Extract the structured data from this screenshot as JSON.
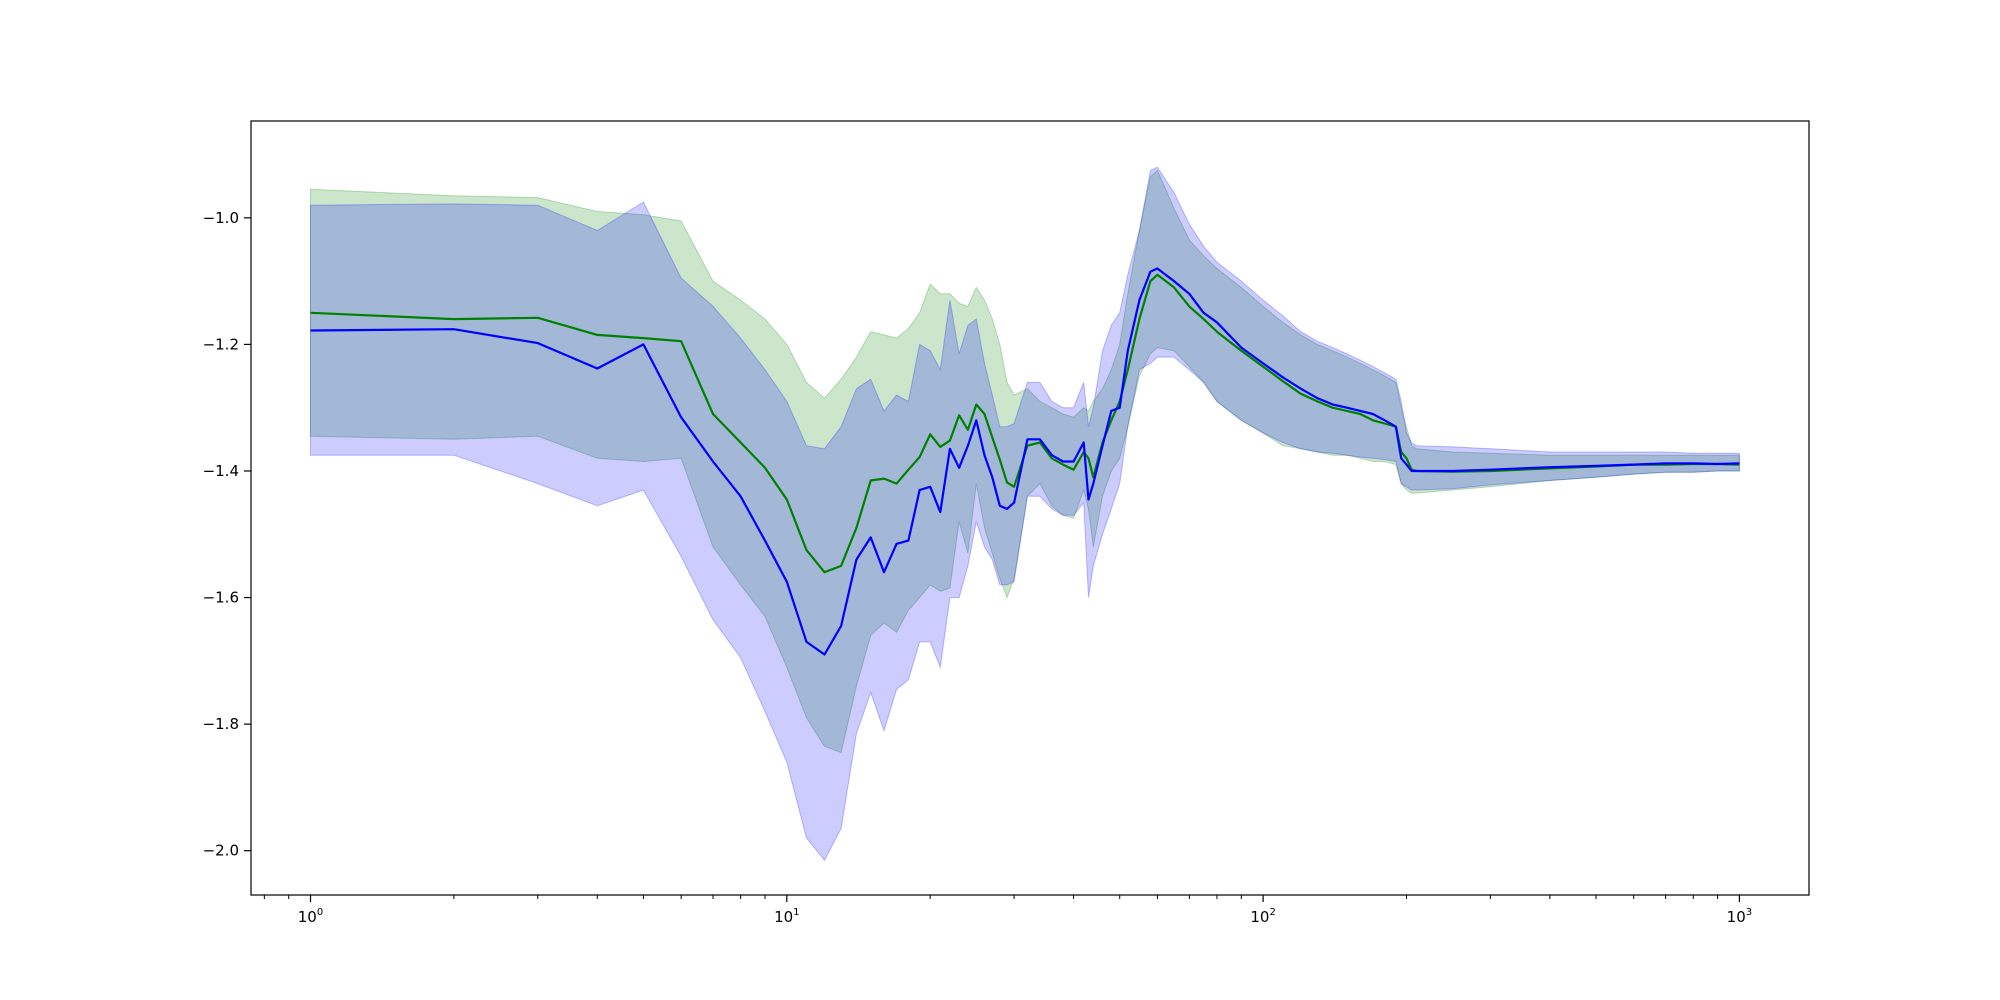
{
  "chart_data": {
    "type": "line",
    "title": "",
    "xlabel": "",
    "ylabel": "",
    "xscale": "log",
    "xlim": [
      0.75,
      1400
    ],
    "ylim": [
      -2.07,
      -0.847
    ],
    "grid": false,
    "legend": "none",
    "x_ticks": [
      {
        "base": "10",
        "exp": "0",
        "value": 1
      },
      {
        "base": "10",
        "exp": "1",
        "value": 10
      },
      {
        "base": "10",
        "exp": "2",
        "value": 100
      },
      {
        "base": "10",
        "exp": "3",
        "value": 1000
      }
    ],
    "y_ticks": [
      {
        "label": "−1.0",
        "value": -1.0
      },
      {
        "label": "−1.2",
        "value": -1.2
      },
      {
        "label": "−1.4",
        "value": -1.4
      },
      {
        "label": "−1.6",
        "value": -1.6
      },
      {
        "label": "−1.8",
        "value": -1.8
      },
      {
        "label": "−2.0",
        "value": -2.0
      }
    ],
    "series": [
      {
        "color": "#008000",
        "band_color": "#008000",
        "band_opacity": 0.2,
        "x": [
          1,
          2,
          3,
          4,
          5,
          6,
          7,
          8,
          9,
          10,
          11,
          12,
          13,
          14,
          15,
          16,
          17,
          18,
          19,
          20,
          21,
          22,
          23,
          24,
          25,
          26,
          27,
          28,
          29,
          30,
          32,
          34,
          36,
          38,
          40,
          42,
          43,
          44,
          46,
          48,
          50,
          52,
          55,
          58,
          60,
          65,
          70,
          75,
          80,
          90,
          100,
          110,
          120,
          130,
          140,
          150,
          160,
          170,
          180,
          190,
          195,
          200,
          205,
          210,
          250,
          300,
          400,
          500,
          600,
          700,
          800,
          900,
          1000
        ],
        "y": [
          -1.15,
          -1.16,
          -1.158,
          -1.185,
          -1.19,
          -1.195,
          -1.31,
          -1.355,
          -1.395,
          -1.445,
          -1.525,
          -1.56,
          -1.55,
          -1.49,
          -1.415,
          -1.412,
          -1.42,
          -1.398,
          -1.378,
          -1.342,
          -1.362,
          -1.352,
          -1.312,
          -1.335,
          -1.295,
          -1.31,
          -1.347,
          -1.382,
          -1.418,
          -1.425,
          -1.36,
          -1.355,
          -1.38,
          -1.39,
          -1.398,
          -1.37,
          -1.38,
          -1.41,
          -1.355,
          -1.32,
          -1.29,
          -1.24,
          -1.16,
          -1.1,
          -1.09,
          -1.11,
          -1.14,
          -1.16,
          -1.18,
          -1.21,
          -1.235,
          -1.258,
          -1.278,
          -1.29,
          -1.3,
          -1.305,
          -1.31,
          -1.32,
          -1.325,
          -1.33,
          -1.37,
          -1.38,
          -1.398,
          -1.4,
          -1.401,
          -1.4,
          -1.396,
          -1.393,
          -1.39,
          -1.39,
          -1.389,
          -1.389,
          -1.39
        ],
        "lower": [
          -1.345,
          -1.35,
          -1.345,
          -1.38,
          -1.385,
          -1.38,
          -1.52,
          -1.58,
          -1.63,
          -1.71,
          -1.79,
          -1.835,
          -1.845,
          -1.74,
          -1.66,
          -1.64,
          -1.655,
          -1.62,
          -1.6,
          -1.58,
          -1.59,
          -1.585,
          -1.48,
          -1.53,
          -1.42,
          -1.49,
          -1.53,
          -1.57,
          -1.6,
          -1.57,
          -1.44,
          -1.42,
          -1.455,
          -1.47,
          -1.475,
          -1.43,
          -1.46,
          -1.52,
          -1.44,
          -1.4,
          -1.38,
          -1.33,
          -1.25,
          -1.215,
          -1.205,
          -1.21,
          -1.235,
          -1.26,
          -1.29,
          -1.32,
          -1.34,
          -1.36,
          -1.365,
          -1.37,
          -1.375,
          -1.375,
          -1.38,
          -1.385,
          -1.385,
          -1.39,
          -1.42,
          -1.43,
          -1.435,
          -1.435,
          -1.43,
          -1.425,
          -1.415,
          -1.41,
          -1.405,
          -1.402,
          -1.402,
          -1.4,
          -1.4
        ],
        "upper": [
          -0.955,
          -0.965,
          -0.968,
          -0.99,
          -0.995,
          -1.005,
          -1.1,
          -1.13,
          -1.16,
          -1.2,
          -1.26,
          -1.285,
          -1.255,
          -1.22,
          -1.18,
          -1.185,
          -1.19,
          -1.175,
          -1.15,
          -1.105,
          -1.12,
          -1.12,
          -1.135,
          -1.14,
          -1.11,
          -1.13,
          -1.16,
          -1.2,
          -1.26,
          -1.28,
          -1.27,
          -1.29,
          -1.3,
          -1.31,
          -1.315,
          -1.3,
          -1.305,
          -1.29,
          -1.27,
          -1.24,
          -1.2,
          -1.12,
          -1.02,
          -0.935,
          -0.925,
          -0.985,
          -1.035,
          -1.06,
          -1.08,
          -1.11,
          -1.14,
          -1.165,
          -1.185,
          -1.2,
          -1.21,
          -1.22,
          -1.23,
          -1.24,
          -1.25,
          -1.26,
          -1.3,
          -1.33,
          -1.36,
          -1.365,
          -1.37,
          -1.372,
          -1.375,
          -1.375,
          -1.375,
          -1.375,
          -1.375,
          -1.375,
          -1.375
        ]
      },
      {
        "color": "#0000ff",
        "band_color": "#0000ff",
        "band_opacity": 0.2,
        "x": [
          1,
          2,
          3,
          4,
          5,
          6,
          7,
          8,
          9,
          10,
          11,
          12,
          13,
          14,
          15,
          16,
          17,
          18,
          19,
          20,
          21,
          22,
          23,
          24,
          25,
          26,
          27,
          28,
          29,
          30,
          32,
          34,
          36,
          38,
          40,
          42,
          43,
          44,
          46,
          48,
          50,
          52,
          55,
          58,
          60,
          65,
          70,
          75,
          80,
          90,
          100,
          110,
          120,
          130,
          140,
          150,
          160,
          170,
          180,
          190,
          195,
          200,
          205,
          210,
          250,
          300,
          400,
          500,
          600,
          700,
          800,
          900,
          1000
        ],
        "y": [
          -1.178,
          -1.176,
          -1.198,
          -1.238,
          -1.2,
          -1.315,
          -1.385,
          -1.44,
          -1.51,
          -1.575,
          -1.67,
          -1.69,
          -1.645,
          -1.54,
          -1.505,
          -1.56,
          -1.515,
          -1.51,
          -1.43,
          -1.425,
          -1.465,
          -1.365,
          -1.395,
          -1.36,
          -1.32,
          -1.375,
          -1.41,
          -1.455,
          -1.46,
          -1.45,
          -1.35,
          -1.35,
          -1.375,
          -1.385,
          -1.385,
          -1.355,
          -1.445,
          -1.42,
          -1.36,
          -1.305,
          -1.3,
          -1.21,
          -1.13,
          -1.085,
          -1.08,
          -1.1,
          -1.12,
          -1.15,
          -1.165,
          -1.205,
          -1.23,
          -1.252,
          -1.27,
          -1.285,
          -1.295,
          -1.3,
          -1.305,
          -1.31,
          -1.32,
          -1.33,
          -1.38,
          -1.39,
          -1.4,
          -1.4,
          -1.4,
          -1.398,
          -1.394,
          -1.392,
          -1.39,
          -1.388,
          -1.388,
          -1.389,
          -1.388
        ],
        "lower": [
          -1.375,
          -1.375,
          -1.42,
          -1.455,
          -1.43,
          -1.535,
          -1.635,
          -1.695,
          -1.78,
          -1.86,
          -1.98,
          -2.015,
          -1.965,
          -1.815,
          -1.75,
          -1.81,
          -1.745,
          -1.73,
          -1.67,
          -1.67,
          -1.71,
          -1.6,
          -1.6,
          -1.55,
          -1.48,
          -1.52,
          -1.54,
          -1.58,
          -1.58,
          -1.575,
          -1.44,
          -1.44,
          -1.46,
          -1.47,
          -1.47,
          -1.45,
          -1.6,
          -1.55,
          -1.5,
          -1.46,
          -1.42,
          -1.33,
          -1.24,
          -1.23,
          -1.22,
          -1.22,
          -1.24,
          -1.26,
          -1.29,
          -1.32,
          -1.34,
          -1.355,
          -1.365,
          -1.37,
          -1.372,
          -1.375,
          -1.378,
          -1.38,
          -1.382,
          -1.385,
          -1.42,
          -1.425,
          -1.43,
          -1.43,
          -1.428,
          -1.422,
          -1.415,
          -1.41,
          -1.405,
          -1.402,
          -1.402,
          -1.4,
          -1.4
        ],
        "upper": [
          -0.98,
          -0.978,
          -0.98,
          -1.02,
          -0.975,
          -1.095,
          -1.14,
          -1.19,
          -1.24,
          -1.29,
          -1.36,
          -1.365,
          -1.33,
          -1.27,
          -1.255,
          -1.305,
          -1.28,
          -1.29,
          -1.2,
          -1.21,
          -1.24,
          -1.13,
          -1.215,
          -1.17,
          -1.16,
          -1.23,
          -1.28,
          -1.33,
          -1.33,
          -1.325,
          -1.26,
          -1.26,
          -1.29,
          -1.3,
          -1.3,
          -1.26,
          -1.33,
          -1.3,
          -1.21,
          -1.17,
          -1.15,
          -1.09,
          -1.02,
          -0.925,
          -0.92,
          -0.96,
          -1.01,
          -1.045,
          -1.07,
          -1.1,
          -1.13,
          -1.155,
          -1.18,
          -1.195,
          -1.205,
          -1.215,
          -1.225,
          -1.235,
          -1.245,
          -1.255,
          -1.29,
          -1.34,
          -1.355,
          -1.36,
          -1.362,
          -1.365,
          -1.37,
          -1.37,
          -1.37,
          -1.37,
          -1.372,
          -1.372,
          -1.372
        ]
      }
    ]
  }
}
